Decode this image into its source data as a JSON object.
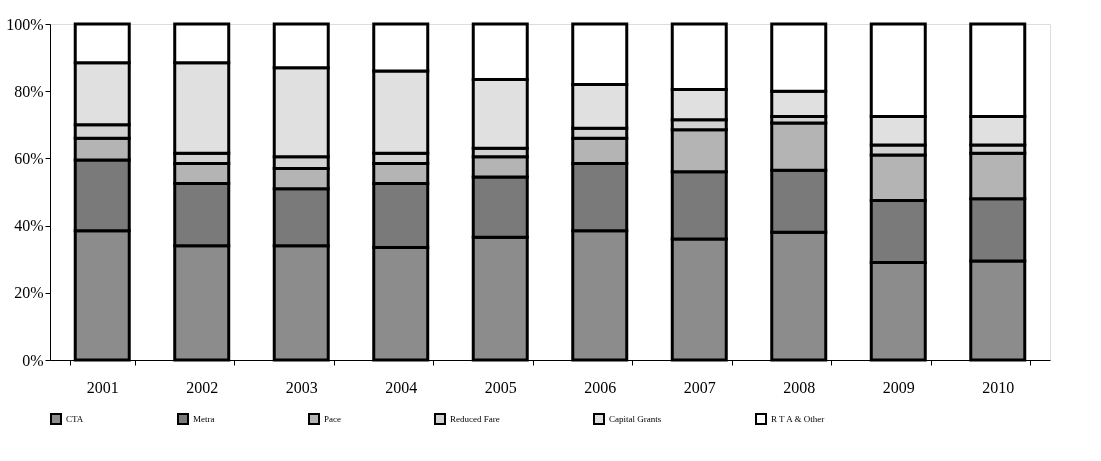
{
  "chart_data": {
    "type": "bar",
    "stacked": true,
    "categories": [
      "2001",
      "2002",
      "2003",
      "2004",
      "2005",
      "2006",
      "2007",
      "2008",
      "2009",
      "2010"
    ],
    "series": [
      {
        "name": "CTA",
        "color": "#8c8c8c",
        "values": [
          38.5,
          34,
          34,
          33.5,
          36.5,
          38.5,
          36,
          38,
          29,
          29.5
        ]
      },
      {
        "name": "Metra",
        "color": "#7a7a7a",
        "values": [
          21,
          18.5,
          17,
          19,
          18,
          20,
          20,
          18.5,
          18.5,
          18.5
        ]
      },
      {
        "name": "Pace",
        "color": "#b4b4b4",
        "values": [
          6.5,
          6,
          6,
          6,
          6,
          7.5,
          12.5,
          14,
          13.5,
          13.5
        ]
      },
      {
        "name": "Reduced Fare",
        "color": "#d2d2d2",
        "values": [
          4,
          3,
          3.5,
          3,
          2.5,
          3,
          3,
          2,
          3,
          2.5
        ]
      },
      {
        "name": "Capital Grants",
        "color": "#e0e0e0",
        "values": [
          18.5,
          27,
          26.5,
          24.5,
          20.5,
          13,
          9,
          7.5,
          8.5,
          8.5
        ]
      },
      {
        "name": "R T A & Other",
        "color": "#ffffff",
        "values": [
          11.5,
          11.5,
          13,
          14,
          16.5,
          18,
          19.5,
          20,
          27.5,
          27.5
        ]
      }
    ],
    "ylim": [
      0,
      100
    ],
    "yticks": [
      {
        "value": 0,
        "label": "0%"
      },
      {
        "value": 20,
        "label": "20%"
      },
      {
        "value": 40,
        "label": "40%"
      },
      {
        "value": 60,
        "label": "60%"
      },
      {
        "value": 80,
        "label": "80%"
      },
      {
        "value": 100,
        "label": "100%"
      }
    ],
    "grid": false,
    "legend": "bottom"
  }
}
